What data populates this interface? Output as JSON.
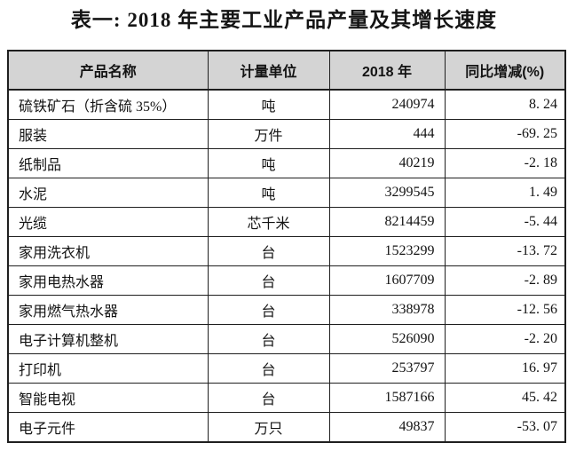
{
  "title": "表一: 2018 年主要工业产品产量及其增长速度",
  "table": {
    "headers": [
      "产品名称",
      "计量单位",
      "2018 年",
      "同比增减(%)"
    ],
    "rows": [
      [
        "硫铁矿石（折含硫 35%）",
        "吨",
        "240974",
        "8. 24"
      ],
      [
        "服装",
        "万件",
        "444",
        "-69. 25"
      ],
      [
        "纸制品",
        "吨",
        "40219",
        "-2. 18"
      ],
      [
        "水泥",
        "吨",
        "3299545",
        "1. 49"
      ],
      [
        "光缆",
        "芯千米",
        "8214459",
        "-5. 44"
      ],
      [
        "家用洗衣机",
        "台",
        "1523299",
        "-13. 72"
      ],
      [
        "家用电热水器",
        "台",
        "1607709",
        "-2. 89"
      ],
      [
        "家用燃气热水器",
        "台",
        "338978",
        "-12. 56"
      ],
      [
        "电子计算机整机",
        "台",
        "526090",
        "-2. 20"
      ],
      [
        "打印机",
        "台",
        "253797",
        "16. 97"
      ],
      [
        "智能电视",
        "台",
        "1587166",
        "45. 42"
      ],
      [
        "电子元件",
        "万只",
        "49837",
        "-53. 07"
      ]
    ]
  },
  "colors": {
    "header_bg": "#d4d4d4",
    "border": "#1f1f1f"
  }
}
